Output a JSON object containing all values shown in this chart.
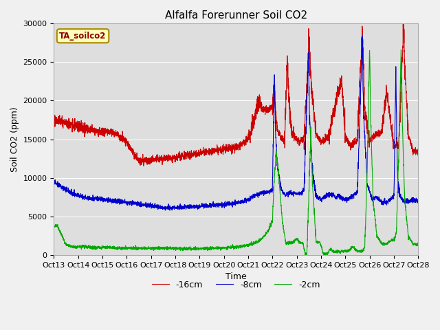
{
  "title": "Alfalfa Forerunner Soil CO2",
  "ylabel": "Soil CO2 (ppm)",
  "xlabel": "Time",
  "sensor_label": "TA_soilco2",
  "legend_labels": [
    "-16cm",
    "-8cm",
    "-2cm"
  ],
  "legend_colors": [
    "#cc0000",
    "#0000cc",
    "#00aa00"
  ],
  "ylim": [
    0,
    30000
  ],
  "yticks": [
    0,
    5000,
    10000,
    15000,
    20000,
    25000,
    30000
  ],
  "xtick_labels": [
    "Oct 13",
    "Oct 14",
    "Oct 15",
    "Oct 16",
    "Oct 17",
    "Oct 18",
    "Oct 19",
    "Oct 20",
    "Oct 21",
    "Oct 22",
    "Oct 23",
    "Oct 24",
    "Oct 25",
    "Oct 26",
    "Oct 27",
    "Oct 28"
  ],
  "plot_bg_color": "#dedede",
  "fig_bg_color": "#f0f0f0",
  "grid_color": "#ffffff",
  "title_fontsize": 11,
  "axis_label_fontsize": 9,
  "tick_fontsize": 8
}
